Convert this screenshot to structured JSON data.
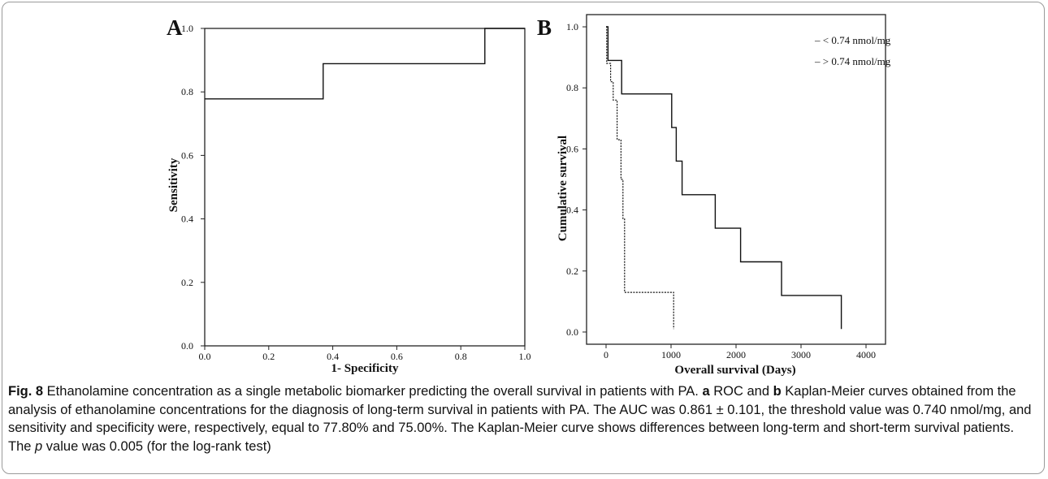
{
  "chart_data": [
    {
      "panel": "A",
      "type": "line",
      "xlabel": "1- Specificity",
      "ylabel": "Sensitivity",
      "xlim": [
        0,
        1
      ],
      "ylim": [
        0,
        1
      ],
      "x_ticks": [
        "0.0",
        "0.2",
        "0.4",
        "0.6",
        "0.8",
        "1.0"
      ],
      "y_ticks": [
        "0.0",
        "0.2",
        "0.4",
        "0.6",
        "0.8",
        "1.0"
      ],
      "series": [
        {
          "style": "solid",
          "x": [
            0.0,
            0.37,
            0.37,
            0.875,
            0.875,
            1.0
          ],
          "y": [
            0.778,
            0.778,
            0.889,
            0.889,
            1.0,
            1.0
          ]
        }
      ]
    },
    {
      "panel": "B",
      "type": "line",
      "xlabel": "Overall survival (Days)",
      "ylabel": "Cumulative survival",
      "xlim": [
        -300,
        4300
      ],
      "ylim": [
        -0.04,
        1.04
      ],
      "x_ticks": [
        "0",
        "1000",
        "2000",
        "3000",
        "4000"
      ],
      "y_ticks": [
        "0.0",
        "0.2",
        "0.4",
        "0.6",
        "0.8",
        "1.0"
      ],
      "legend_position": "top-right",
      "series": [
        {
          "name": "< 0.74 nmol/mg",
          "style": "solid",
          "x": [
            0,
            30,
            30,
            240,
            240,
            1010,
            1010,
            1080,
            1080,
            1170,
            1170,
            1680,
            1680,
            2070,
            2070,
            2700,
            2700,
            3620,
            3620
          ],
          "y": [
            1.0,
            1.0,
            0.89,
            0.89,
            0.78,
            0.78,
            0.67,
            0.67,
            0.56,
            0.56,
            0.45,
            0.45,
            0.34,
            0.34,
            0.23,
            0.23,
            0.12,
            0.12,
            0.01
          ]
        },
        {
          "name": "> 0.74 nmol/mg",
          "style": "dotted",
          "x": [
            0,
            10,
            10,
            70,
            70,
            110,
            110,
            170,
            170,
            230,
            230,
            260,
            260,
            285,
            285,
            1040,
            1040
          ],
          "y": [
            1.0,
            1.0,
            0.88,
            0.88,
            0.82,
            0.82,
            0.76,
            0.76,
            0.63,
            0.63,
            0.5,
            0.5,
            0.37,
            0.37,
            0.13,
            0.13,
            0.01
          ]
        }
      ]
    }
  ],
  "caption": {
    "fig_label": "Fig. 8",
    "lead": " Ethanolamine concentration as a single metabolic biomarker predicting the overall survival in patients with PA. ",
    "a_label": "a",
    "a_text": " ROC and ",
    "b_label": "b",
    "b_text": " Kaplan-Meier curves obtained from the analysis of ethanolamine concentrations for the diagnosis of long-term survival in patients with PA. The AUC was 0.861 ± 0.101, the threshold value was 0.740 nmol/mg, and sensitivity and specificity were, respectively, equal to 77.80% and 75.00%. The Kaplan-Meier curve shows differences between long-term and short-term survival patients. The ",
    "p_symbol": "p",
    "tail": " value was 0.005 (for the log-rank test)"
  }
}
